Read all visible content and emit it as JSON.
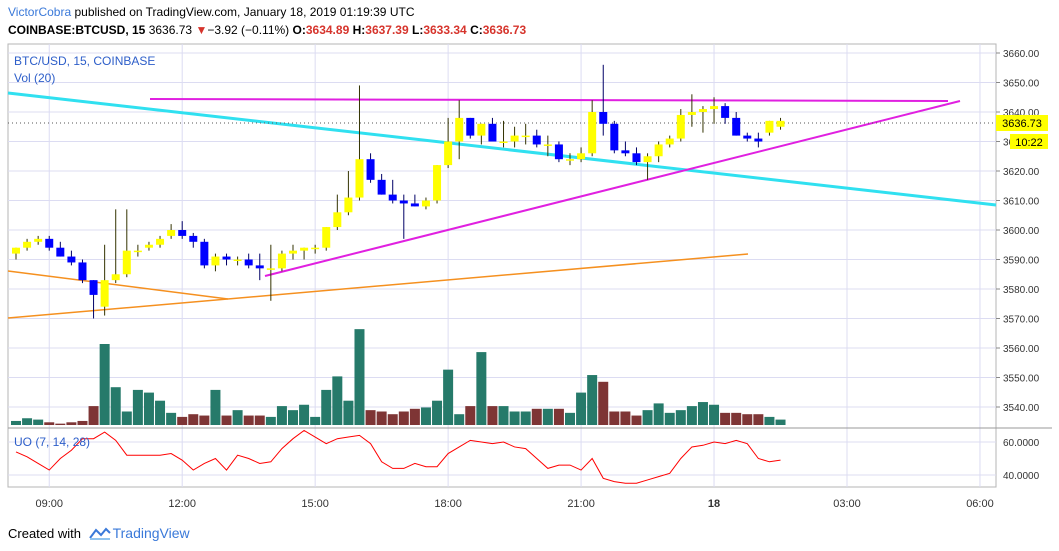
{
  "header": {
    "author": "VictorCobra",
    "published": "published on TradingView.com, January 18, 2019 01:19:39 UTC",
    "symbol": "COINBASE:BTCUSD, 15",
    "last": "3636.73",
    "change_arrow": "▼",
    "change": "−3.92 (−0.11%)",
    "open_label": "O:",
    "open": "3634.89",
    "high_label": "H:",
    "high": "3637.39",
    "low_label": "L:",
    "low": "3633.34",
    "close_label": "C:",
    "close": "3636.73"
  },
  "pane_labels": {
    "main": "BTC/USD, 15, COINBASE",
    "volume": "Vol (20)",
    "oscillator": "UO (7, 14, 28)"
  },
  "price_badge": {
    "value": "3636.73",
    "countdown": "10:22"
  },
  "footer": {
    "created_with": "Created with",
    "brand": "TradingView"
  },
  "colors": {
    "up_candle": "#ffff00",
    "down_candle": "#0000ff",
    "vol_up": "#267a6a",
    "vol_down": "#7e3535",
    "resistance": "#e020e0",
    "support": "#e020e0",
    "long_trend": "#30e0f0",
    "orange_lines": "#f5901f",
    "uo_line": "#ff0000",
    "grid": "#dcdcf2",
    "author": "#3a79d9"
  },
  "chart_data": {
    "type": "candlestick",
    "title": "BTC/USD, 15, COINBASE",
    "price_axis": {
      "ticks": [
        3540,
        3550,
        3560,
        3570,
        3580,
        3590,
        3600,
        3610,
        3620,
        3630,
        3640,
        3650,
        3660
      ],
      "labels": [
        "3540.00",
        "3550.00",
        "3560.00",
        "3570.00",
        "3580.00",
        "3590.00",
        "3600.00",
        "3610.00",
        "3620.00",
        "3630.00",
        "3640.00",
        "3650.00",
        "3660.00"
      ]
    },
    "time_axis": {
      "labels": [
        "09:00",
        "12:00",
        "15:00",
        "18:00",
        "21:00",
        "18",
        "03:00",
        "06:00"
      ],
      "label_index": [
        3,
        15,
        27,
        39,
        51,
        63,
        75,
        87
      ]
    },
    "uo_axis": {
      "ticks": [
        40,
        60
      ],
      "labels": [
        "40.0000",
        "60.0000"
      ]
    },
    "candles": [
      [
        3592,
        3594,
        3590,
        3594
      ],
      [
        3594,
        3597,
        3593,
        3596
      ],
      [
        3596,
        3598,
        3595,
        3597
      ],
      [
        3597,
        3598,
        3593,
        3594
      ],
      [
        3594,
        3596,
        3591,
        3591
      ],
      [
        3591,
        3593,
        3588,
        3589
      ],
      [
        3589,
        3590,
        3582,
        3583
      ],
      [
        3583,
        3583,
        3570,
        3578
      ],
      [
        3574,
        3595,
        3571,
        3583
      ],
      [
        3583,
        3607,
        3582,
        3585
      ],
      [
        3585,
        3607,
        3584,
        3593
      ],
      [
        3593,
        3595,
        3591,
        3593
      ],
      [
        3594,
        3596,
        3593,
        3595
      ],
      [
        3595,
        3598,
        3594,
        3597
      ],
      [
        3598,
        3602,
        3597,
        3600
      ],
      [
        3600,
        3603,
        3597,
        3598
      ],
      [
        3598,
        3599,
        3594,
        3596
      ],
      [
        3596,
        3597,
        3587,
        3588
      ],
      [
        3588,
        3592,
        3586,
        3591
      ],
      [
        3591,
        3592,
        3588,
        3590
      ],
      [
        3590,
        3591,
        3588,
        3590
      ],
      [
        3590,
        3592,
        3587,
        3588
      ],
      [
        3588,
        3592,
        3583,
        3587
      ],
      [
        3587,
        3595,
        3576,
        3587
      ],
      [
        3587,
        3593,
        3586,
        3592
      ],
      [
        3592,
        3595,
        3590,
        3593
      ],
      [
        3593,
        3594,
        3590,
        3594
      ],
      [
        3594,
        3595,
        3592,
        3594
      ],
      [
        3594,
        3601,
        3593,
        3601
      ],
      [
        3601,
        3612,
        3600,
        3606
      ],
      [
        3606,
        3620,
        3605,
        3611
      ],
      [
        3611,
        3649,
        3610,
        3624
      ],
      [
        3624,
        3626,
        3616,
        3617
      ],
      [
        3617,
        3619,
        3612,
        3612
      ],
      [
        3612,
        3617,
        3609,
        3610
      ],
      [
        3610,
        3612,
        3597,
        3609
      ],
      [
        3609,
        3612,
        3608,
        3608
      ],
      [
        3608,
        3611,
        3607,
        3610
      ],
      [
        3610,
        3622,
        3609,
        3622
      ],
      [
        3622,
        3638,
        3621,
        3630
      ],
      [
        3630,
        3644,
        3624,
        3638
      ],
      [
        3638,
        3638,
        3631,
        3632
      ],
      [
        3632,
        3636,
        3629,
        3636
      ],
      [
        3636,
        3638,
        3630,
        3630
      ],
      [
        3630,
        3637,
        3628,
        3630
      ],
      [
        3630,
        3635,
        3628,
        3632
      ],
      [
        3632,
        3636,
        3629,
        3632
      ],
      [
        3632,
        3634,
        3628,
        3629
      ],
      [
        3629,
        3632,
        3625,
        3629
      ],
      [
        3629,
        3630,
        3623,
        3624
      ],
      [
        3624,
        3626,
        3622,
        3624
      ],
      [
        3624,
        3628,
        3623,
        3626
      ],
      [
        3626,
        3644,
        3625,
        3640
      ],
      [
        3640,
        3656,
        3632,
        3636
      ],
      [
        3636,
        3637,
        3626,
        3627
      ],
      [
        3627,
        3630,
        3625,
        3626
      ],
      [
        3626,
        3628,
        3622,
        3623
      ],
      [
        3623,
        3626,
        3617,
        3625
      ],
      [
        3625,
        3630,
        3623,
        3629
      ],
      [
        3629,
        3632,
        3628,
        3631
      ],
      [
        3631,
        3641,
        3630,
        3639
      ],
      [
        3639,
        3646,
        3635,
        3640
      ],
      [
        3640,
        3642,
        3633,
        3641
      ],
      [
        3641,
        3645,
        3636,
        3642
      ],
      [
        3642,
        3643,
        3636,
        3638
      ],
      [
        3638,
        3640,
        3632,
        3632
      ],
      [
        3632,
        3633,
        3630,
        3631
      ],
      [
        3631,
        3633,
        3628,
        3630
      ],
      [
        3633,
        3637,
        3632,
        3637
      ],
      [
        3635,
        3638,
        3634,
        3637
      ]
    ],
    "volume": [
      3,
      5,
      4,
      2,
      1,
      2,
      3,
      14,
      60,
      28,
      10,
      26,
      24,
      18,
      9,
      6,
      8,
      7,
      26,
      7,
      11,
      7,
      7,
      6,
      14,
      11,
      15,
      6,
      26,
      36,
      18,
      71,
      11,
      10,
      8,
      10,
      12,
      13,
      18,
      41,
      8,
      14,
      54,
      14,
      14,
      10,
      10,
      12,
      12,
      12,
      9,
      24,
      37,
      32,
      10,
      10,
      7,
      11,
      16,
      9,
      11,
      14,
      17,
      15,
      9,
      9,
      8,
      8,
      6,
      4
    ],
    "uo": [
      54,
      51,
      47,
      43,
      50,
      55,
      62,
      62,
      66,
      61,
      52,
      52,
      52,
      52,
      53,
      49,
      43,
      47,
      50,
      43,
      52,
      50,
      47,
      48,
      56,
      62,
      67,
      63,
      59,
      62,
      63,
      64,
      59,
      48,
      44,
      44,
      47,
      45,
      45,
      53,
      57,
      61,
      60,
      59,
      60,
      57,
      56,
      50,
      44,
      46,
      46,
      43,
      50,
      38,
      36,
      35,
      35,
      37,
      39,
      41,
      50,
      57,
      58,
      60,
      59,
      61,
      59,
      50,
      48,
      49
    ]
  }
}
